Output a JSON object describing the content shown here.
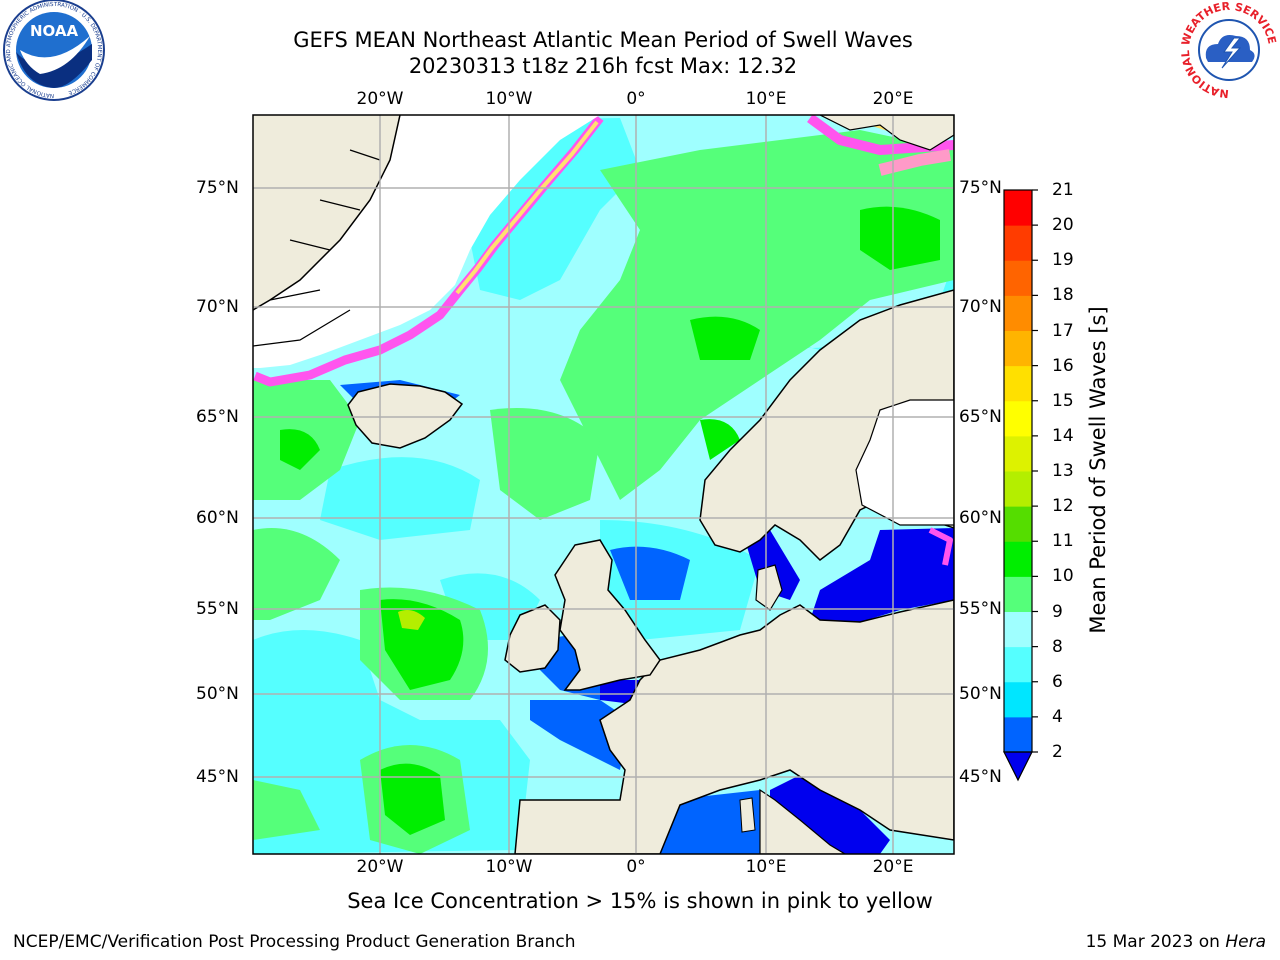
{
  "title": {
    "line1": "GEFS MEAN Northeast Atlantic Mean Period of Swell Waves",
    "line2": "20230313 t18z 216h fcst   Max: 12.32"
  },
  "logos": {
    "noaa_text": "NOAA",
    "noaa_ring": "NATIONAL OCEANIC AND ATMOSPHERIC ADMINISTRATION · U.S. DEPARTMENT OF COMMERCE",
    "nws_ring": "NATIONAL WEATHER SERVICE"
  },
  "map": {
    "lon_ticks": [
      "20°W",
      "10°W",
      "0°",
      "10°E",
      "20°E"
    ],
    "lat_ticks": [
      "75°N",
      "70°N",
      "65°N",
      "60°N",
      "55°N",
      "50°N",
      "45°N"
    ],
    "colors": {
      "land": "#efecdc",
      "ice_free_white": "#ffffff",
      "coast": "#000000",
      "grid": "#b0b0b0",
      "sea_ice_pink": "#ff55ee",
      "sea_ice_yellow": "#ffe070"
    }
  },
  "colorbar": {
    "label": "Mean Period of Swell Waves [s]",
    "ticks": [
      "2",
      "4",
      "6",
      "8",
      "9",
      "10",
      "11",
      "12",
      "13",
      "14",
      "15",
      "16",
      "17",
      "18",
      "19",
      "20",
      "21"
    ],
    "bins": [
      {
        "from": 2,
        "to": 4,
        "color": "#0064ff"
      },
      {
        "from": 4,
        "to": 6,
        "color": "#00e6ff"
      },
      {
        "from": 6,
        "to": 8,
        "color": "#55ffff"
      },
      {
        "from": 8,
        "to": 9,
        "color": "#9fffff"
      },
      {
        "from": 9,
        "to": 10,
        "color": "#55ff7a"
      },
      {
        "from": 10,
        "to": 11,
        "color": "#00ee00"
      },
      {
        "from": 11,
        "to": 12,
        "color": "#55dd00"
      },
      {
        "from": 12,
        "to": 13,
        "color": "#b4ee00"
      },
      {
        "from": 13,
        "to": 14,
        "color": "#ddf200"
      },
      {
        "from": 14,
        "to": 15,
        "color": "#ffff00"
      },
      {
        "from": 15,
        "to": 16,
        "color": "#ffe000"
      },
      {
        "from": 16,
        "to": 17,
        "color": "#ffb400"
      },
      {
        "from": 17,
        "to": 18,
        "color": "#ff8c00"
      },
      {
        "from": 18,
        "to": 19,
        "color": "#ff6400"
      },
      {
        "from": 19,
        "to": 20,
        "color": "#ff3c00"
      },
      {
        "from": 20,
        "to": 21,
        "color": "#ff0000"
      }
    ],
    "extend_below_color": "#0000ee"
  },
  "caption": "Sea Ice Concentration > 15% is shown in pink to yellow",
  "footer": {
    "left": "NCEP/EMC/Verification Post Processing Product Generation Branch",
    "date": "15 Mar 2023 on",
    "machine": "Hera"
  }
}
